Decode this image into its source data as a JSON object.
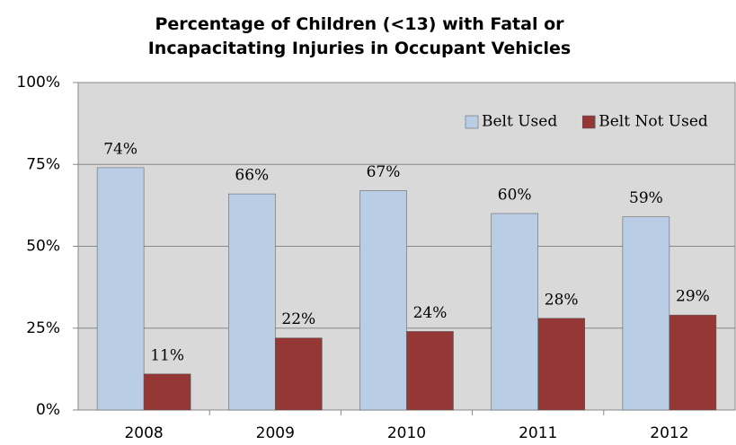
{
  "chart_data": {
    "type": "bar",
    "title": "Percentage of Children (<13) with Fatal or Incapacitating Injuries in Occupant Vehicles",
    "categories": [
      "2008",
      "2009",
      "2010",
      "2011",
      "2012"
    ],
    "series": [
      {
        "name": "Belt Used",
        "color": "#b9cde5",
        "values": [
          74,
          66,
          67,
          60,
          59
        ],
        "value_labels": [
          "74%",
          "66%",
          "67%",
          "60%",
          "59%"
        ]
      },
      {
        "name": "Belt Not Used",
        "color": "#953735",
        "values": [
          11,
          22,
          24,
          28,
          29
        ],
        "value_labels": [
          "11%",
          "22%",
          "24%",
          "28%",
          "29%"
        ]
      }
    ],
    "ylim": [
      0,
      100
    ],
    "yticks": [
      {
        "value": 0,
        "label": "0%"
      },
      {
        "value": 25,
        "label": "25%"
      },
      {
        "value": 50,
        "label": "50%"
      },
      {
        "value": 75,
        "label": "75%"
      },
      {
        "value": 100,
        "label": "100%"
      }
    ],
    "grid": true,
    "legend": "top-right"
  }
}
